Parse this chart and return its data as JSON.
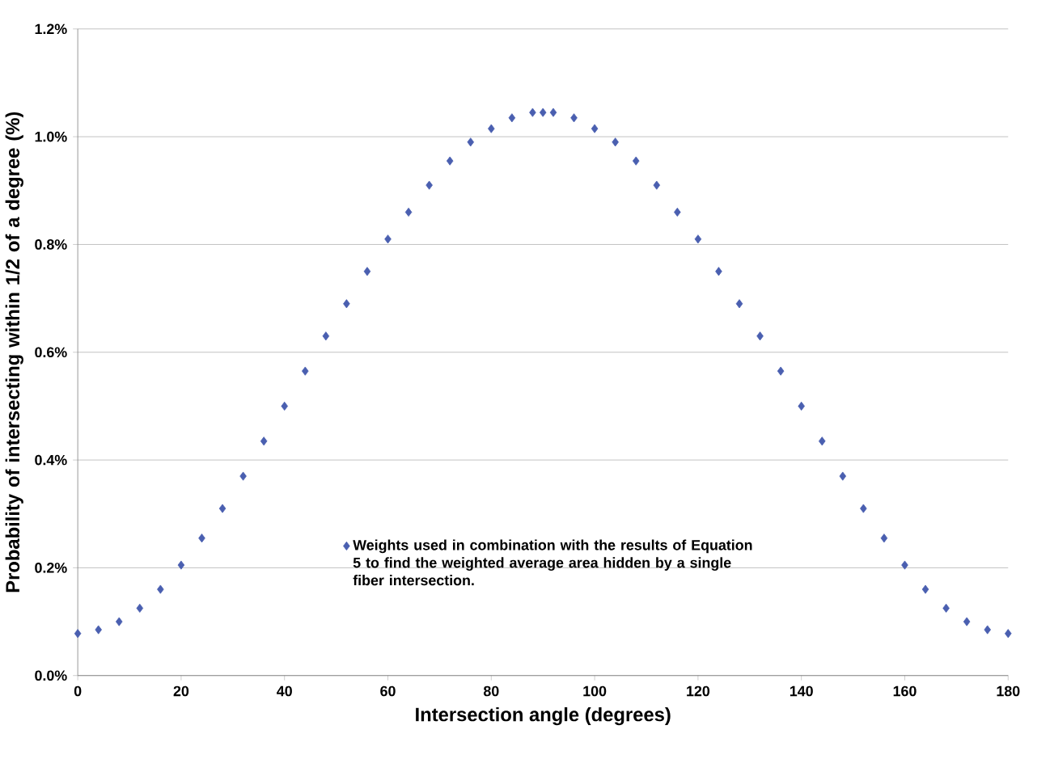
{
  "chart_data": {
    "type": "scatter",
    "xlabel": "Intersection angle (degrees)",
    "ylabel": "Probability of intersecting within 1/2 of a degree (%)",
    "x": [
      0,
      4,
      8,
      12,
      16,
      20,
      24,
      28,
      32,
      36,
      40,
      44,
      48,
      52,
      56,
      60,
      64,
      68,
      72,
      76,
      80,
      84,
      88,
      90,
      92,
      96,
      100,
      104,
      108,
      112,
      116,
      120,
      124,
      128,
      132,
      136,
      140,
      144,
      148,
      152,
      156,
      160,
      164,
      168,
      172,
      176,
      180
    ],
    "series": [
      {
        "name": "Weights used in combination with the results of Equation 5 to find the weighted average area hidden by a single fiber intersection.",
        "color": "#4a5fb0",
        "values": [
          0.078,
          0.085,
          0.1,
          0.125,
          0.16,
          0.205,
          0.255,
          0.31,
          0.37,
          0.435,
          0.5,
          0.565,
          0.63,
          0.69,
          0.75,
          0.81,
          0.86,
          0.91,
          0.955,
          0.99,
          1.015,
          1.035,
          1.045,
          1.045,
          1.045,
          1.035,
          1.015,
          0.99,
          0.955,
          0.91,
          0.86,
          0.81,
          0.75,
          0.69,
          0.63,
          0.565,
          0.5,
          0.435,
          0.37,
          0.31,
          0.255,
          0.205,
          0.16,
          0.125,
          0.1,
          0.085,
          0.078
        ]
      }
    ],
    "marker": "diamond",
    "grid": "y",
    "legend": "bottom",
    "xlim": [
      0,
      180
    ],
    "xticks": [
      0,
      20,
      40,
      60,
      80,
      100,
      120,
      140,
      160,
      180
    ],
    "ylim": [
      0,
      1.2
    ],
    "yticks": [
      {
        "value": 0,
        "label": "0.0%"
      },
      {
        "value": 0.2,
        "label": "0.2%"
      },
      {
        "value": 0.4,
        "label": "0.4%"
      },
      {
        "value": 0.6,
        "label": "0.6%"
      },
      {
        "value": 0.8,
        "label": "0.8%"
      },
      {
        "value": 1.0,
        "label": "1.0%"
      },
      {
        "value": 1.2,
        "label": "1.2%"
      }
    ]
  }
}
